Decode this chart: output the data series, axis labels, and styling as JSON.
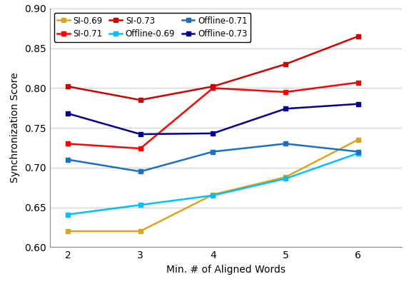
{
  "x": [
    2,
    3,
    4,
    5,
    6
  ],
  "series": [
    {
      "label": "SI-0.69",
      "color": "#DAA520",
      "values": [
        0.62,
        0.62,
        0.666,
        0.688,
        0.735
      ],
      "linestyle": "-",
      "marker": "s"
    },
    {
      "label": "SI-0.71",
      "color": "#FF0000",
      "values": [
        0.73,
        0.724,
        0.8,
        0.795,
        0.807
      ],
      "linestyle": "-",
      "marker": "s"
    },
    {
      "label": "SI-0.73",
      "color": "#CC0000",
      "values": [
        0.802,
        0.785,
        0.802,
        0.83,
        0.865
      ],
      "linestyle": "-",
      "marker": "s"
    },
    {
      "label": "Offline-0.69",
      "color": "#00BFFF",
      "values": [
        0.641,
        0.653,
        0.665,
        0.686,
        0.718
      ],
      "linestyle": "-",
      "marker": "s"
    },
    {
      "label": "Offline-0.71",
      "color": "#1E6FBF",
      "values": [
        0.71,
        0.695,
        0.72,
        0.73,
        0.72
      ],
      "linestyle": "-",
      "marker": "s"
    },
    {
      "label": "Offline-0.73",
      "color": "#00008B",
      "values": [
        0.768,
        0.742,
        0.743,
        0.774,
        0.78
      ],
      "linestyle": "-",
      "marker": "s"
    }
  ],
  "xlabel": "Min. # of Aligned Words",
  "ylabel": "Synchronization Score",
  "ylim": [
    0.6,
    0.9
  ],
  "yticks": [
    0.6,
    0.65,
    0.7,
    0.75,
    0.8,
    0.85,
    0.9
  ],
  "xticks": [
    2,
    3,
    4,
    5,
    6
  ],
  "legend_ncol": 3,
  "legend_loc": "upper left",
  "background_color": "#ffffff",
  "grid_color": "#d0d0d0"
}
